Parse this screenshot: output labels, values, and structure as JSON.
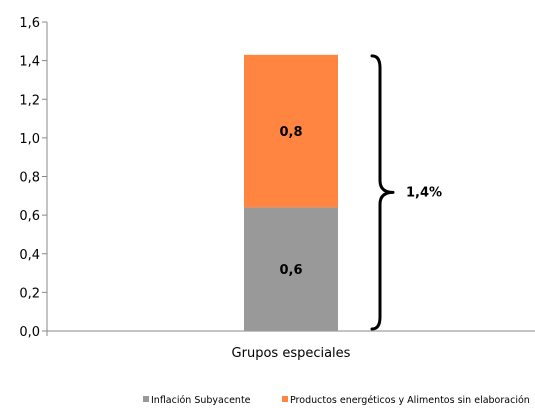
{
  "chart_data": {
    "type": "bar",
    "stacked": true,
    "categories": [
      "Grupos especiales"
    ],
    "series": [
      {
        "name": "Inflación Subyacente",
        "values": [
          0.64
        ],
        "label": "0,6",
        "color": "#999999"
      },
      {
        "name": "Productos energéticos y Alimentos sin elaboración",
        "values": [
          0.79
        ],
        "label": "0,8",
        "color": "#ff8540"
      }
    ],
    "ylim": [
      0,
      1.6
    ],
    "yticks": [
      "0,0",
      "0,2",
      "0,4",
      "0,6",
      "0,8",
      "1,0",
      "1,2",
      "1,4",
      "1,6"
    ],
    "annotation": "1,4%",
    "legend_position": "bottom",
    "grid": false
  }
}
